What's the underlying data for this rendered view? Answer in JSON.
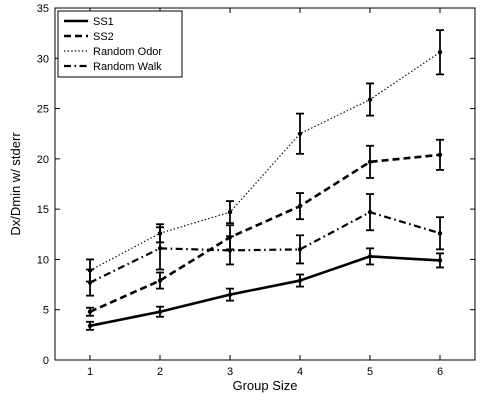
{
  "chart_data": {
    "type": "line",
    "title": "",
    "xlabel": "Group Size",
    "ylabel": "Dx/Dmin w/ stderr",
    "x": [
      1,
      2,
      3,
      4,
      5,
      6
    ],
    "xlim": [
      0.5,
      6.5
    ],
    "ylim": [
      0,
      35
    ],
    "xticks": [
      1,
      2,
      3,
      4,
      5,
      6
    ],
    "yticks": [
      0,
      5,
      10,
      15,
      20,
      25,
      30,
      35
    ],
    "grid": false,
    "legend_position": "top-left",
    "error_bars": "stderr",
    "series": [
      {
        "name": "SS1",
        "line_style": "solid",
        "values": [
          3.4,
          4.8,
          6.5,
          7.9,
          10.3,
          9.9
        ],
        "errors": [
          0.4,
          0.5,
          0.6,
          0.6,
          0.8,
          0.7
        ]
      },
      {
        "name": "SS2",
        "line_style": "dashed",
        "values": [
          4.8,
          7.9,
          12.2,
          15.3,
          19.7,
          20.4
        ],
        "errors": [
          0.4,
          0.8,
          1.2,
          1.3,
          1.6,
          1.5
        ]
      },
      {
        "name": "Random Odor",
        "line_style": "dotted",
        "values": [
          8.9,
          12.6,
          14.7,
          22.5,
          25.9,
          30.6
        ],
        "errors": [
          1.1,
          0.9,
          1.1,
          2.0,
          1.6,
          2.2
        ]
      },
      {
        "name": "Random Walk",
        "line_style": "dashdot",
        "values": [
          7.7,
          11.1,
          10.9,
          11.0,
          14.7,
          12.6
        ],
        "errors": [
          1.3,
          2.1,
          1.4,
          1.4,
          1.8,
          1.6
        ]
      }
    ]
  }
}
